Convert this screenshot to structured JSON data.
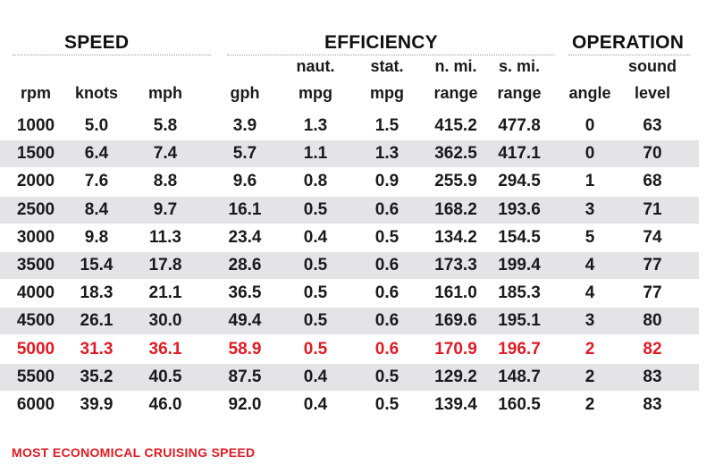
{
  "groups": {
    "speed": "SPEED",
    "efficiency": "EFFICIENCY",
    "operation": "OPERATION"
  },
  "columns": [
    {
      "top": "",
      "bottom": "rpm"
    },
    {
      "top": "",
      "bottom": "knots"
    },
    {
      "top": "",
      "bottom": "mph"
    },
    {
      "top": "",
      "bottom": "gph"
    },
    {
      "top": "naut.",
      "bottom": "mpg"
    },
    {
      "top": "stat.",
      "bottom": "mpg"
    },
    {
      "top": "n. mi.",
      "bottom": "range"
    },
    {
      "top": "s. mi.",
      "bottom": "range"
    },
    {
      "top": "",
      "bottom": "angle"
    },
    {
      "top": "sound",
      "bottom": "level"
    }
  ],
  "rows": [
    [
      "1000",
      "5.0",
      "5.8",
      "3.9",
      "1.3",
      "1.5",
      "415.2",
      "477.8",
      "0",
      "63"
    ],
    [
      "1500",
      "6.4",
      "7.4",
      "5.7",
      "1.1",
      "1.3",
      "362.5",
      "417.1",
      "0",
      "70"
    ],
    [
      "2000",
      "7.6",
      "8.8",
      "9.6",
      "0.8",
      "0.9",
      "255.9",
      "294.5",
      "1",
      "68"
    ],
    [
      "2500",
      "8.4",
      "9.7",
      "16.1",
      "0.5",
      "0.6",
      "168.2",
      "193.6",
      "3",
      "71"
    ],
    [
      "3000",
      "9.8",
      "11.3",
      "23.4",
      "0.4",
      "0.5",
      "134.2",
      "154.5",
      "5",
      "74"
    ],
    [
      "3500",
      "15.4",
      "17.8",
      "28.6",
      "0.5",
      "0.6",
      "173.3",
      "199.4",
      "4",
      "77"
    ],
    [
      "4000",
      "18.3",
      "21.1",
      "36.5",
      "0.5",
      "0.6",
      "161.0",
      "185.3",
      "4",
      "77"
    ],
    [
      "4500",
      "26.1",
      "30.0",
      "49.4",
      "0.5",
      "0.6",
      "169.6",
      "195.1",
      "3",
      "80"
    ],
    [
      "5000",
      "31.3",
      "36.1",
      "58.9",
      "0.5",
      "0.6",
      "170.9",
      "196.7",
      "2",
      "82"
    ],
    [
      "5500",
      "35.2",
      "40.5",
      "87.5",
      "0.4",
      "0.5",
      "129.2",
      "148.7",
      "2",
      "83"
    ],
    [
      "6000",
      "39.9",
      "46.0",
      "92.0",
      "0.4",
      "0.5",
      "139.4",
      "160.5",
      "2",
      "83"
    ]
  ],
  "highlight_row": 8,
  "footer": "MOST ECONOMICAL CRUISING SPEED",
  "colors": {
    "highlight": "#e01a22",
    "row_shade": "#e4e4e6",
    "text": "#1a1a1a"
  }
}
